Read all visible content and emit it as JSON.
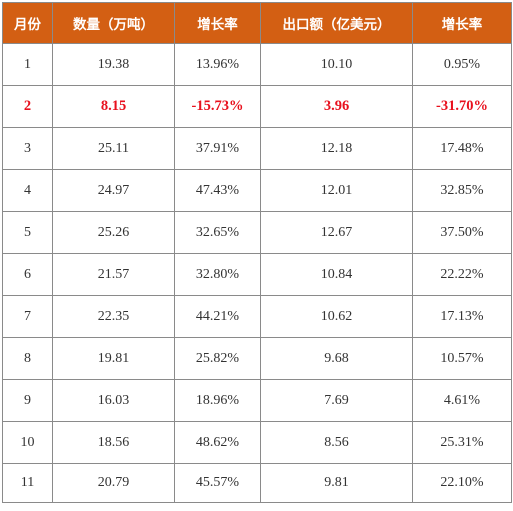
{
  "colors": {
    "header_bg": "#d35f13",
    "header_text": "#ffffff",
    "highlight_text": "#e8101d",
    "body_text": "#333333",
    "grid": "#8a8a8a"
  },
  "table": {
    "headers": [
      "月份",
      "数量（万吨）",
      "增长率",
      "出口额（亿美元）",
      "增长率"
    ],
    "rows": [
      {
        "month": "1",
        "quantity": "19.38",
        "quantity_growth": "13.96%",
        "export_value": "10.10",
        "value_growth": "0.95%"
      },
      {
        "month": "2",
        "quantity": "8.15",
        "quantity_growth": "-15.73%",
        "export_value": "3.96",
        "value_growth": "-31.70%",
        "highlight": true
      },
      {
        "month": "3",
        "quantity": "25.11",
        "quantity_growth": "37.91%",
        "export_value": "12.18",
        "value_growth": "17.48%"
      },
      {
        "month": "4",
        "quantity": "24.97",
        "quantity_growth": "47.43%",
        "export_value": "12.01",
        "value_growth": "32.85%"
      },
      {
        "month": "5",
        "quantity": "25.26",
        "quantity_growth": "32.65%",
        "export_value": "12.67",
        "value_growth": "37.50%"
      },
      {
        "month": "6",
        "quantity": "21.57",
        "quantity_growth": "32.80%",
        "export_value": "10.84",
        "value_growth": "22.22%"
      },
      {
        "month": "7",
        "quantity": "22.35",
        "quantity_growth": "44.21%",
        "export_value": "10.62",
        "value_growth": "17.13%"
      },
      {
        "month": "8",
        "quantity": "19.81",
        "quantity_growth": "25.82%",
        "export_value": "9.68",
        "value_growth": "10.57%"
      },
      {
        "month": "9",
        "quantity": "16.03",
        "quantity_growth": "18.96%",
        "export_value": "7.69",
        "value_growth": "4.61%"
      },
      {
        "month": "10",
        "quantity": "18.56",
        "quantity_growth": "48.62%",
        "export_value": "8.56",
        "value_growth": "25.31%"
      },
      {
        "month": "11",
        "quantity": "20.79",
        "quantity_growth": "45.57%",
        "export_value": "9.81",
        "value_growth": "22.10%"
      }
    ]
  }
}
